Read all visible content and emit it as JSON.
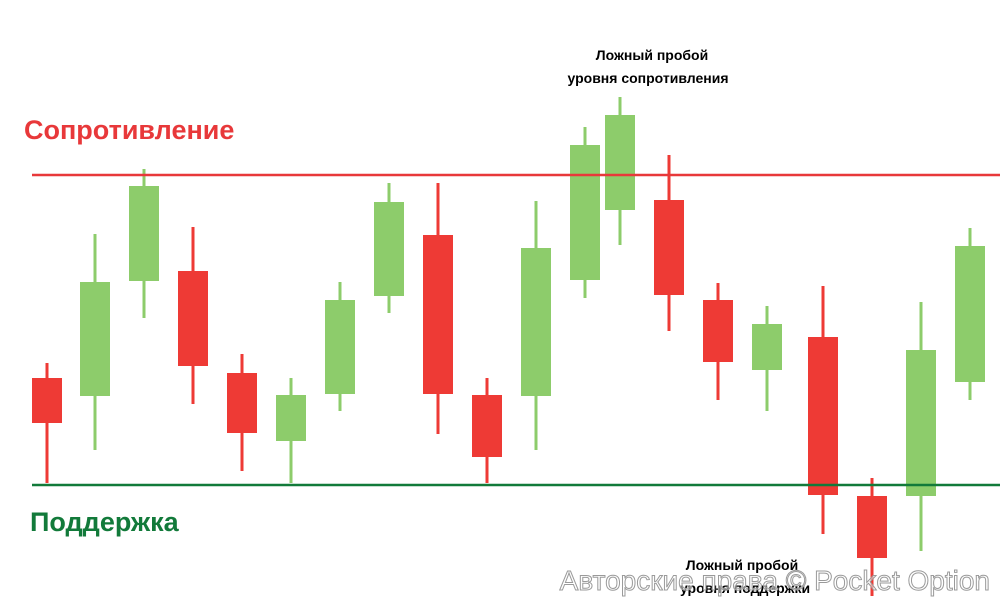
{
  "levels": {
    "resistance": "Сопротивление",
    "support": "Поддержка"
  },
  "annotations": {
    "false_breakout_resistance": [
      "Ложный пробой",
      "уровня сопротивления"
    ],
    "false_breakout_support": [
      "Ложный пробой",
      "уровня поддержки"
    ]
  },
  "watermark": "Авторские права © Pocket Option"
}
